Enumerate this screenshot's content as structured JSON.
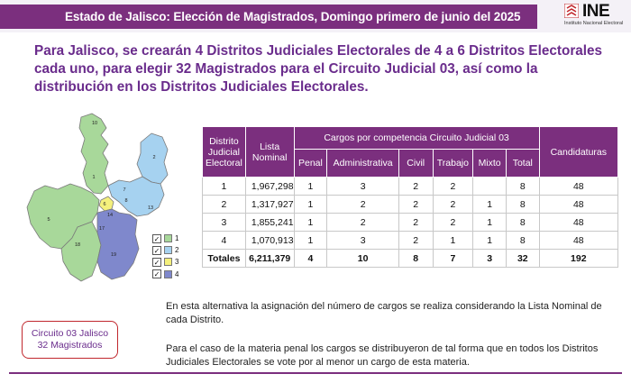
{
  "header": {
    "title": "Estado de Jalisco: Elección de Magistrados, Domingo primero de junio del 2025",
    "logo_text": "INE",
    "logo_subtitle": "Instituto Nacional Electoral"
  },
  "intro": "Para Jalisco, se crearán 4 Distritos Judiciales Electorales de 4 a 6 Distritos Electorales cada uno, para elegir 32 Magistrados para el Circuito Judicial 03, así como la distribución en los Distritos Judiciales Electorales.",
  "map": {
    "region_labels": [
      "1",
      "2",
      "3",
      "4",
      "5",
      "6",
      "7",
      "8",
      "9",
      "10",
      "11",
      "12",
      "13",
      "14",
      "15",
      "16",
      "17",
      "18",
      "19",
      "20"
    ],
    "colors": {
      "district_1": "#a8d89a",
      "district_2": "#a6d2f0",
      "district_3": "#f4f07c",
      "district_4": "#7f88cc"
    }
  },
  "legend": [
    {
      "label": "1",
      "color": "#a8d89a",
      "checked": "✓"
    },
    {
      "label": "2",
      "color": "#a6d2f0",
      "checked": "✓"
    },
    {
      "label": "3",
      "color": "#f4f07c",
      "checked": "✓"
    },
    {
      "label": "4",
      "color": "#7f88cc",
      "checked": "✓"
    }
  ],
  "table": {
    "header_district": "Distrito Judicial Electoral",
    "header_list": "Lista Nominal",
    "header_group": "Cargos por competencia Circuito Judicial 03",
    "header_candidaturas": "Candidaturas",
    "subheaders": [
      "Penal",
      "Administrativa",
      "Civil",
      "Trabajo",
      "Mixto",
      "Total"
    ],
    "rows": [
      {
        "district": "1",
        "list": "1,967,298",
        "penal": "1",
        "admin": "3",
        "civil": "2",
        "trabajo": "2",
        "mixto": "",
        "total": "8",
        "cand": "48"
      },
      {
        "district": "2",
        "list": "1,317,927",
        "penal": "1",
        "admin": "2",
        "civil": "2",
        "trabajo": "2",
        "mixto": "1",
        "total": "8",
        "cand": "48"
      },
      {
        "district": "3",
        "list": "1,855,241",
        "penal": "1",
        "admin": "2",
        "civil": "2",
        "trabajo": "2",
        "mixto": "1",
        "total": "8",
        "cand": "48"
      },
      {
        "district": "4",
        "list": "1,070,913",
        "penal": "1",
        "admin": "3",
        "civil": "2",
        "trabajo": "1",
        "mixto": "1",
        "total": "8",
        "cand": "48"
      }
    ],
    "totals": {
      "label": "Totales",
      "list": "6,211,379",
      "penal": "4",
      "admin": "10",
      "civil": "8",
      "trabajo": "7",
      "mixto": "3",
      "total": "32",
      "cand": "192"
    }
  },
  "notes": [
    "En esta alternativa la asignación del número de cargos se realiza considerando la Lista Nominal de cada Distrito.",
    "Para el caso de la materia penal los cargos se distribuyeron de tal forma que en todos los Distritos Judiciales Electorales se vote por al menor un cargo de esta materia."
  ],
  "circuit_box": {
    "line1": "Circuito 03 Jalisco",
    "line2": "32 Magistrados"
  }
}
